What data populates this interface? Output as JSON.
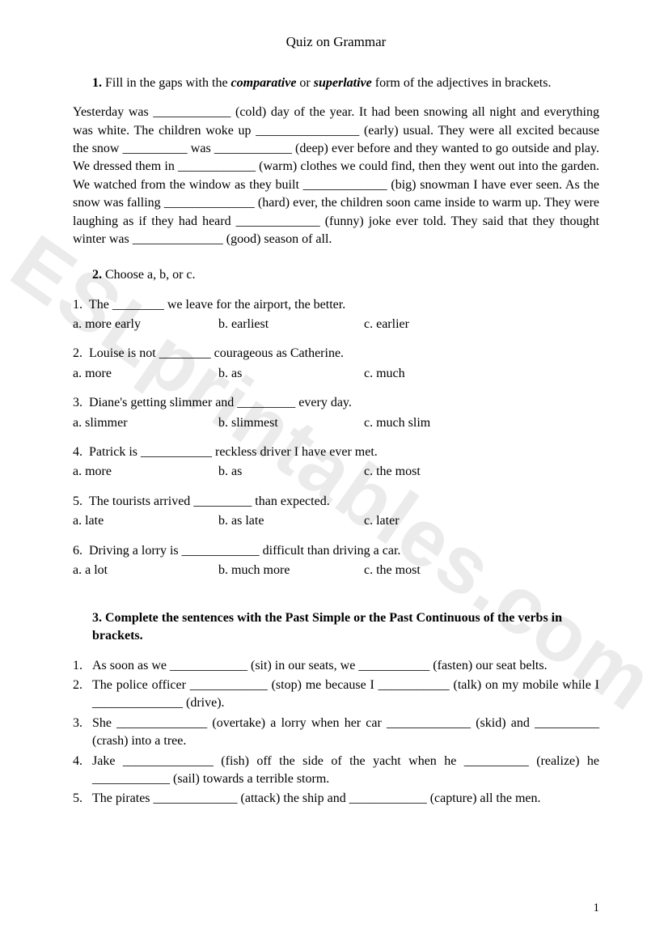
{
  "title": "Quiz on Grammar",
  "watermark": "ESLprintables.com",
  "page_number": "1",
  "colors": {
    "text": "#000000",
    "background": "#ffffff",
    "watermark": "rgba(0,0,0,0.08)"
  },
  "typography": {
    "body_font": "Times New Roman",
    "body_size_pt": 12,
    "title_size_pt": 13
  },
  "section1": {
    "number": "1.",
    "heading_pre": "Fill in the gaps with the ",
    "heading_bi1": "comparative",
    "heading_mid": " or ",
    "heading_bi2": "superlative",
    "heading_post": " form of the adjectives in brackets.",
    "paragraph": "Yesterday was ____________ (cold) day of the year. It had been snowing all night and everything was white. The children woke up ________________ (early) usual. They were all excited because the snow __________ was ____________ (deep) ever before and they wanted to go outside and play. We dressed them in ____________ (warm) clothes we could find, then they went out into the garden. We watched from the window as they built _____________ (big) snowman I have ever seen. As the snow was falling ______________ (hard) ever, the children soon came inside to warm up. They were laughing as if they had heard _____________ (funny) joke ever told. They said that they thought winter was ______________ (good) season of all."
  },
  "section2": {
    "number": "2.",
    "heading": "Choose a, b, or c.",
    "questions": [
      {
        "n": "1.",
        "q": "The ________ we leave for the airport, the better.",
        "a": "a. more early",
        "b": "b. earliest",
        "c": "c. earlier"
      },
      {
        "n": "2.",
        "q": "Louise is not ________ courageous as Catherine.",
        "a": "a. more",
        "b": "b. as",
        "c": "c. much"
      },
      {
        "n": "3.",
        "q": "Diane's getting slimmer and _________ every day.",
        "a": "a. slimmer",
        "b": "b. slimmest",
        "c": "c. much slim"
      },
      {
        "n": "4.",
        "q": "Patrick is ___________ reckless driver I have ever met.",
        "a": "a. more",
        "b": "b. as",
        "c": "c. the most"
      },
      {
        "n": "5.",
        "q": "The tourists arrived _________ than expected.",
        "a": "a. late",
        "b": "b. as late",
        "c": "c. later"
      },
      {
        "n": "6.",
        "q": "Driving a lorry is ____________ difficult than driving a car.",
        "a": "a. a lot",
        "b": "b. much more",
        "c": "c. the most"
      }
    ]
  },
  "section3": {
    "number": "3.",
    "heading": "Complete the sentences with the Past Simple or the Past Continuous of the verbs in brackets.",
    "items": [
      {
        "n": "1.",
        "t": "As soon as we ____________ (sit) in our seats, we ___________ (fasten) our seat belts."
      },
      {
        "n": "2.",
        "t": "The police officer ____________ (stop) me because I ___________ (talk) on my mobile while I ______________ (drive)."
      },
      {
        "n": "3.",
        "t": "She ______________ (overtake) a lorry when her car _____________ (skid) and __________ (crash) into a tree."
      },
      {
        "n": "4.",
        "t": "Jake ______________ (fish) off the side of the yacht when he __________ (realize) he ____________ (sail) towards a terrible storm."
      },
      {
        "n": "5.",
        "t": "The pirates _____________ (attack) the ship and ____________ (capture) all the men."
      }
    ]
  }
}
